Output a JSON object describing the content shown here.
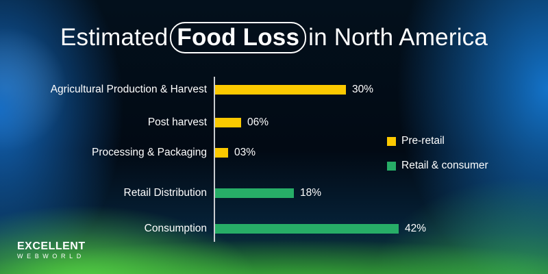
{
  "title": {
    "prefix": "Estimated",
    "highlight": "Food Loss",
    "suffix": "in North America"
  },
  "legend": [
    {
      "label": "Pre-retail",
      "color": "#fcc900"
    },
    {
      "label": "Retail & consumer",
      "color": "#27ad67"
    }
  ],
  "logo": {
    "top": "EXCELLENT",
    "bottom": "WEBWORLD"
  },
  "chart_data": {
    "type": "bar",
    "orientation": "horizontal",
    "title": "Estimated Food Loss in North America",
    "xlabel": "",
    "ylabel": "",
    "categories": [
      "Agricultural Production & Harvest",
      "Post harvest",
      "Processing & Packaging",
      "Retail Distribution",
      "Consumption"
    ],
    "values": [
      30,
      6,
      3,
      18,
      42
    ],
    "value_labels": [
      "30%",
      "06%",
      "03%",
      "18%",
      "42%"
    ],
    "groups": [
      "Pre-retail",
      "Pre-retail",
      "Pre-retail",
      "Retail & consumer",
      "Retail & consumer"
    ],
    "series": [
      {
        "name": "Pre-retail",
        "color": "#fcc900",
        "values": [
          30,
          6,
          3,
          null,
          null
        ]
      },
      {
        "name": "Retail & consumer",
        "color": "#27ad67",
        "values": [
          null,
          null,
          null,
          18,
          42
        ]
      }
    ],
    "xlim": [
      0,
      42
    ],
    "grid": false,
    "legend_position": "right"
  }
}
